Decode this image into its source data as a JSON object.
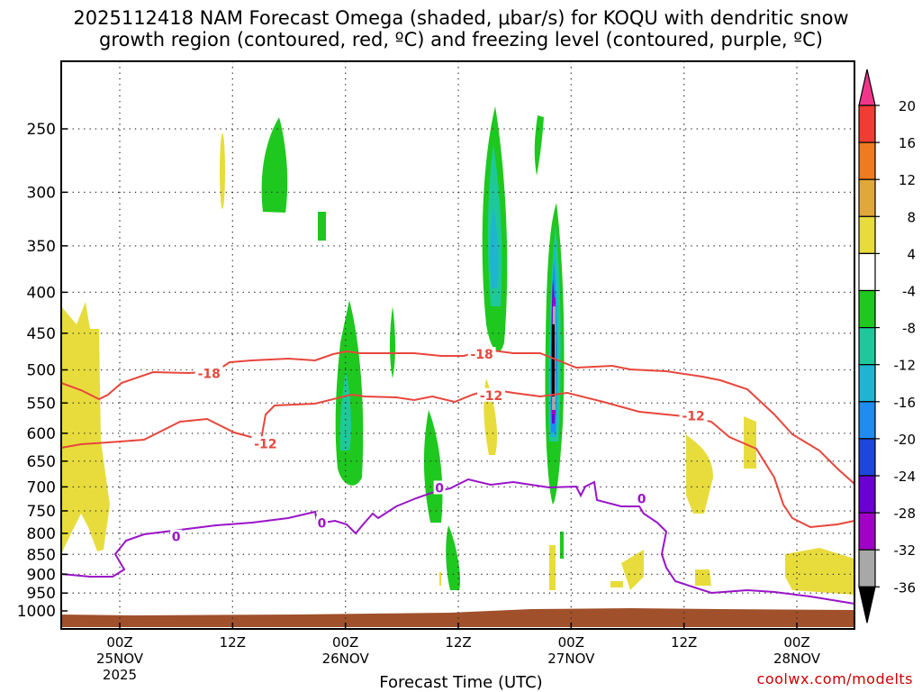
{
  "chart_data": {
    "type": "time-height cross section (filled contour + line contours)",
    "title_line1": "2025112418 NAM Forecast Omega (shaded, μbar/s) for KOQU with dendritic snow",
    "title_line2": "growth region (contoured, red, ºC) and freezing level (contoured, purple, ºC)",
    "xlabel": "Forecast Time (UTC)",
    "ylabel": "",
    "y_axis": {
      "unit": "hPa",
      "range": [
        1000,
        200
      ],
      "scale": "log",
      "ticks": [
        "250",
        "300",
        "350",
        "400",
        "450",
        "500",
        "550",
        "600",
        "650",
        "700",
        "750",
        "800",
        "850",
        "900",
        "950",
        "1000"
      ]
    },
    "x_axis": {
      "unit": "hours since 2025-11-24 18Z",
      "range": [
        0,
        84
      ],
      "ticks": [
        {
          "hour": 6,
          "label1": "00Z",
          "label2": "25NOV",
          "label3": "2025"
        },
        {
          "hour": 18,
          "label1": "12Z",
          "label2": "",
          "label3": ""
        },
        {
          "hour": 30,
          "label1": "00Z",
          "label2": "26NOV",
          "label3": ""
        },
        {
          "hour": 42,
          "label1": "12Z",
          "label2": "",
          "label3": ""
        },
        {
          "hour": 54,
          "label1": "00Z",
          "label2": "27NOV",
          "label3": ""
        },
        {
          "hour": 66,
          "label1": "12Z",
          "label2": "",
          "label3": ""
        },
        {
          "hour": 78,
          "label1": "00Z",
          "label2": "28NOV",
          "label3": ""
        }
      ]
    },
    "colorbar": {
      "labels": [
        "20",
        "16",
        "12",
        "8",
        "4",
        "-4",
        "-8",
        "-12",
        "-16",
        "-20",
        "-24",
        "-28",
        "-32",
        "-36"
      ],
      "colors": [
        "#f0368a",
        "#f03c32",
        "#f07a1e",
        "#e0a838",
        "#e8dc3c",
        "#ffffff",
        "#1ec81e",
        "#1ec89a",
        "#1eb4d2",
        "#1e8cf0",
        "#1e46dc",
        "#6a00d2",
        "#a000c8",
        "#a8a8a8",
        "#000000"
      ]
    },
    "contours": {
      "dgz_color": "#e8463c",
      "frz_color": "#9a14c8",
      "labels": [
        {
          "text": "-18",
          "hour": 15.5,
          "p": 505,
          "kind": "dgz"
        },
        {
          "text": "-18",
          "hour": 44.5,
          "p": 478,
          "kind": "dgz"
        },
        {
          "text": "-12",
          "hour": 21.5,
          "p": 618,
          "kind": "dgz"
        },
        {
          "text": "-12",
          "hour": 45.5,
          "p": 538,
          "kind": "dgz"
        },
        {
          "text": "-12",
          "hour": 67,
          "p": 571,
          "kind": "dgz"
        },
        {
          "text": "0",
          "hour": 12,
          "p": 808,
          "kind": "frz"
        },
        {
          "text": "0",
          "hour": 27.5,
          "p": 777,
          "kind": "frz"
        },
        {
          "text": "0",
          "hour": 40,
          "p": 702,
          "kind": "frz"
        },
        {
          "text": "0",
          "hour": 61.5,
          "p": 724,
          "kind": "frz"
        }
      ]
    },
    "omega_cells": [
      {
        "hour": 2,
        "p_top": 420,
        "p_bot": 850,
        "value": 5
      },
      {
        "hour": 17.5,
        "p_top": 250,
        "p_bot": 300,
        "value": 5
      },
      {
        "hour": 23.5,
        "p_top": 235,
        "p_bot": 315,
        "value": -6
      },
      {
        "hour": 27.3,
        "p_top": 320,
        "p_bot": 345,
        "value": -6
      },
      {
        "hour": 30.5,
        "p_top": 410,
        "p_bot": 690,
        "value": -7
      },
      {
        "hour": 35,
        "p_top": 420,
        "p_bot": 520,
        "value": -5
      },
      {
        "hour": 40.7,
        "p_top": 580,
        "p_bot": 780,
        "value": -6
      },
      {
        "hour": 42.5,
        "p_top": 820,
        "p_bot": 950,
        "value": -6
      },
      {
        "hour": 46.5,
        "p_top": 230,
        "p_bot": 460,
        "value": -14
      },
      {
        "hour": 49,
        "p_top": 235,
        "p_bot": 280,
        "value": -6
      },
      {
        "hour": 52,
        "p_top": 310,
        "p_bot": 740,
        "value": -30
      },
      {
        "hour": 64.5,
        "p_top": 600,
        "p_bot": 710,
        "value": 5
      },
      {
        "hour": 71.5,
        "p_top": 580,
        "p_bot": 640,
        "value": 5
      },
      {
        "hour": 81,
        "p_top": 850,
        "p_bot": 950,
        "value": 5
      }
    ],
    "ground_color": "#a0502a"
  },
  "credit": "coolwx.com/modelts"
}
